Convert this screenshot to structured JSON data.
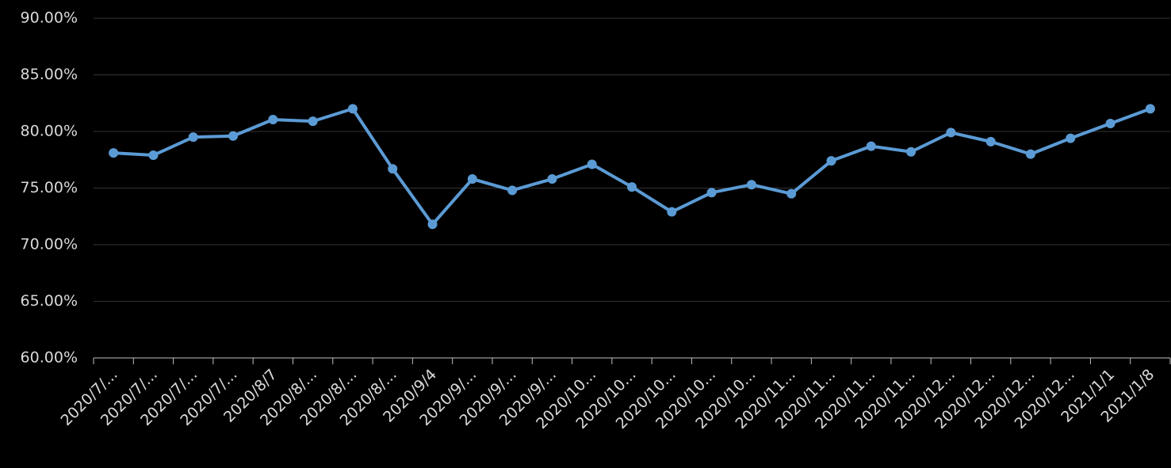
{
  "chart_data": {
    "type": "line",
    "categories": [
      "2020/7/...",
      "2020/7/...",
      "2020/7/...",
      "2020/7/...",
      "2020/8/7",
      "2020/8/...",
      "2020/8/...",
      "2020/8/...",
      "2020/9/4",
      "2020/9/...",
      "2020/9/...",
      "2020/9/...",
      "2020/10...",
      "2020/10...",
      "2020/10...",
      "2020/10...",
      "2020/10...",
      "2020/11...",
      "2020/11...",
      "2020/11...",
      "2020/11...",
      "2020/12...",
      "2020/12...",
      "2020/12...",
      "2020/12...",
      "2021/1/1",
      "2021/1/8"
    ],
    "series": [
      {
        "color": "#5b9bd5",
        "values": [
          78.1,
          77.9,
          79.5,
          79.6,
          81.05,
          80.9,
          82.0,
          76.7,
          71.8,
          75.8,
          74.8,
          75.8,
          77.1,
          75.1,
          72.9,
          74.6,
          75.3,
          74.5,
          77.4,
          78.7,
          78.2,
          79.9,
          79.1,
          78.0,
          79.4,
          80.7,
          82.0
        ]
      }
    ],
    "ylim": [
      60,
      90
    ],
    "yticks": [
      {
        "value": 60,
        "label": "60.00%"
      },
      {
        "value": 65,
        "label": "65.00%"
      },
      {
        "value": 70,
        "label": "70.00%"
      },
      {
        "value": 75,
        "label": "75.00%"
      },
      {
        "value": 80,
        "label": "80.00%"
      },
      {
        "value": 85,
        "label": "85.00%"
      },
      {
        "value": 90,
        "label": "90.00%"
      }
    ],
    "grid": true
  }
}
